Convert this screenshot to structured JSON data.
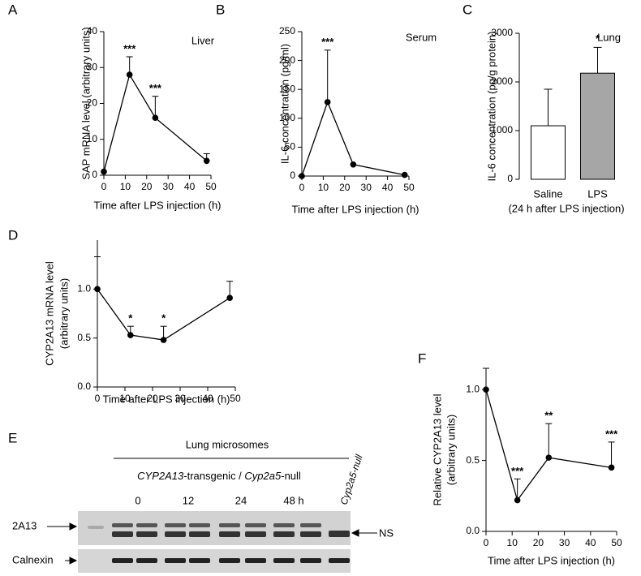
{
  "chart_data": [
    {
      "type": "line",
      "panel_label": "A",
      "inset_label": "Liver",
      "ylabel": "SAP mRNA level (arbitrary units)",
      "xlabel": "Time after LPS injection (h)",
      "x": [
        0,
        12,
        24,
        48
      ],
      "values": [
        1,
        28,
        16,
        4
      ],
      "errors": [
        null,
        5,
        6,
        2
      ],
      "point_labels": [
        null,
        "***",
        "***",
        null
      ],
      "color": "#000000",
      "xlim": [
        0,
        50
      ],
      "xticks": [
        0,
        10,
        20,
        30,
        40,
        50
      ],
      "ylim": [
        0,
        40
      ],
      "yticks": [
        0,
        10,
        20,
        30,
        40
      ]
    },
    {
      "type": "line",
      "panel_label": "B",
      "inset_label": "Serum",
      "ylabel": "IL-6 concentration (pg/ml)",
      "xlabel": "Time after LPS injection (h)",
      "x": [
        0,
        12,
        24,
        48
      ],
      "values": [
        0,
        128,
        20,
        2
      ],
      "errors": [
        null,
        90,
        null,
        null
      ],
      "point_labels": [
        null,
        "***",
        null,
        null
      ],
      "color": "#000000",
      "xlim": [
        0,
        50
      ],
      "xticks": [
        0,
        10,
        20,
        30,
        40,
        50
      ],
      "ylim": [
        0,
        250
      ],
      "yticks": [
        0,
        50,
        100,
        150,
        200,
        250
      ]
    },
    {
      "type": "bar",
      "panel_label": "C",
      "inset_label": "Lung",
      "ylabel": "IL-6 concentration (pg/g protein)",
      "xlabel": "(24 h after LPS injection)",
      "categories": [
        "Saline",
        "LPS"
      ],
      "values": [
        1100,
        2180
      ],
      "errors": [
        750,
        530
      ],
      "point_labels": [
        null,
        "*"
      ],
      "colors": [
        "#ffffff",
        "#a6a6a6"
      ],
      "ylim": [
        0,
        3000
      ],
      "yticks": [
        0,
        1000,
        2000,
        3000
      ]
    },
    {
      "type": "line",
      "panel_label": "D",
      "ylabel": [
        "CYP2A13 mRNA level",
        "(arbitrary units)"
      ],
      "xlabel": "Time after LPS injection (h)",
      "x": [
        0,
        12,
        24,
        48
      ],
      "values": [
        1.0,
        0.53,
        0.48,
        0.91
      ],
      "errors": [
        0.33,
        0.09,
        0.14,
        0.17
      ],
      "point_labels": [
        null,
        "*",
        "*",
        null
      ],
      "color": "#000000",
      "xlim": [
        0,
        50
      ],
      "xticks": [
        0,
        10,
        20,
        30,
        40,
        50
      ],
      "ylim": [
        0,
        1.5
      ],
      "yticks": [
        {
          "value": 0,
          "label": "0.0"
        },
        {
          "value": 0.5,
          "label": "0.5"
        },
        {
          "value": 1,
          "label": "1.0"
        }
      ]
    },
    {
      "type": "line",
      "panel_label": "F",
      "ylabel": [
        "Relative CYP2A13 level",
        "(arbitrary units)"
      ],
      "xlabel": "Time after LPS injection (h)",
      "x": [
        0,
        12,
        24,
        48
      ],
      "values": [
        1.0,
        0.22,
        0.52,
        0.45
      ],
      "errors": [
        0.15,
        0.15,
        0.24,
        0.18
      ],
      "point_labels": [
        null,
        "***",
        "**",
        "***"
      ],
      "color": "#000000",
      "xlim": [
        0,
        50
      ],
      "xticks": [
        0,
        10,
        20,
        30,
        40,
        50
      ],
      "ylim": [
        0,
        1.15
      ],
      "yticks": [
        {
          "value": 0,
          "label": "0.0"
        },
        {
          "value": 0.5,
          "label": "0.5"
        },
        {
          "value": 1,
          "label": "1.0"
        }
      ]
    }
  ],
  "blot": {
    "panel_label": "E",
    "title": "Lung microsomes",
    "group_label": [
      "CYP2A13",
      "-transgenic / ",
      "Cyp2a5",
      "-null"
    ],
    "lanes": [
      "0",
      "12",
      "24",
      "48 h"
    ],
    "control": "Cyp2a5-null",
    "rows": [
      "2A13",
      "Calnexin"
    ],
    "ns_label": "NS"
  }
}
